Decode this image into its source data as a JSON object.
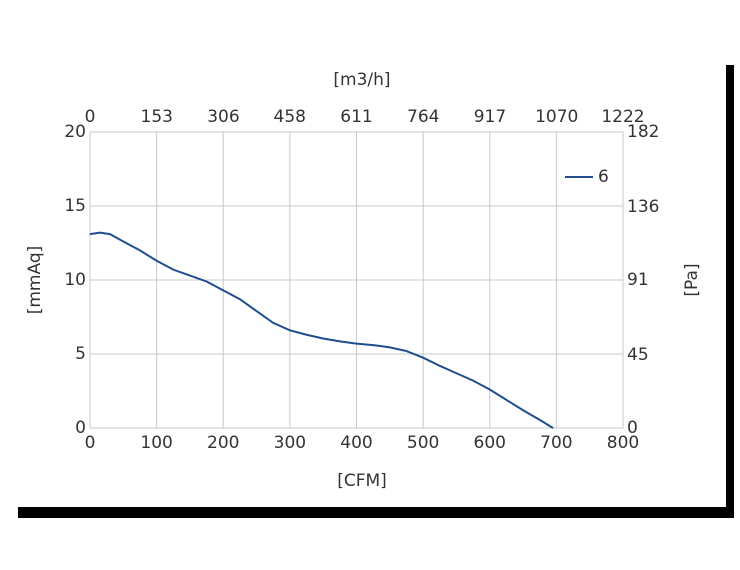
{
  "chart_data": {
    "type": "line",
    "xlabel": "[CFM]",
    "x2label": "[m3/h]",
    "ylabel": "[mmAq]",
    "y2label": "[Pa]",
    "x": [
      0,
      15,
      30,
      50,
      75,
      100,
      125,
      150,
      175,
      200,
      225,
      250,
      275,
      300,
      325,
      350,
      375,
      400,
      425,
      450,
      475,
      500,
      525,
      550,
      575,
      600,
      625,
      650,
      675,
      695
    ],
    "series": [
      {
        "name": "6",
        "color": "#1f4e8c",
        "values": [
          13.1,
          13.2,
          13.1,
          12.6,
          12.0,
          11.3,
          10.7,
          10.3,
          9.9,
          9.3,
          8.7,
          7.9,
          7.1,
          6.6,
          6.3,
          6.05,
          5.85,
          5.7,
          5.6,
          5.45,
          5.2,
          4.75,
          4.2,
          3.7,
          3.2,
          2.6,
          1.9,
          1.2,
          0.55,
          0
        ]
      }
    ],
    "xlim": [
      0,
      800
    ],
    "xticks": [
      0,
      100,
      200,
      300,
      400,
      500,
      600,
      700,
      800
    ],
    "x2lim": [
      0,
      1222
    ],
    "x2ticks": [
      0,
      153,
      306,
      458,
      611,
      764,
      917,
      1070,
      1222
    ],
    "ylim": [
      0,
      20
    ],
    "yticks": [
      0,
      5,
      10,
      15,
      20
    ],
    "y2lim": [
      0,
      182
    ],
    "y2ticks": [
      0,
      45,
      91,
      136,
      182
    ],
    "grid": true,
    "legend": "upper right"
  }
}
